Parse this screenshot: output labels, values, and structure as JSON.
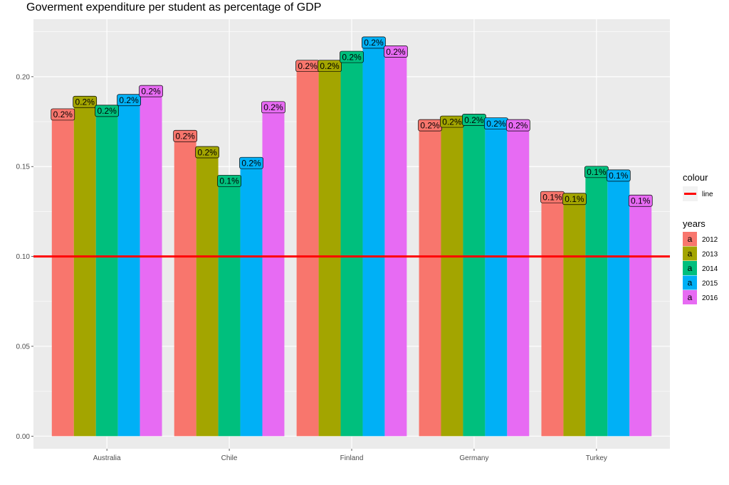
{
  "chart_data": {
    "type": "bar",
    "title": "Goverment expenditure per student as percentage of GDP",
    "xlabel": "",
    "ylabel": "",
    "categories": [
      "Australia",
      "Chile",
      "Finland",
      "Germany",
      "Turkey"
    ],
    "series": [
      {
        "name": "2012",
        "color": "#F8766D",
        "values": [
          0.179,
          0.167,
          0.206,
          0.173,
          0.133
        ],
        "labels": [
          "0.2%",
          "0.2%",
          "0.2%",
          "0.2%",
          "0.1%"
        ]
      },
      {
        "name": "2013",
        "color": "#A3A500",
        "values": [
          0.186,
          0.158,
          0.206,
          0.175,
          0.132
        ],
        "labels": [
          "0.2%",
          "0.2%",
          "0.2%",
          "0.2%",
          "0.1%"
        ]
      },
      {
        "name": "2014",
        "color": "#00BF7D",
        "values": [
          0.181,
          0.142,
          0.211,
          0.176,
          0.147
        ],
        "labels": [
          "0.2%",
          "0.1%",
          "0.2%",
          "0.2%",
          "0.1%"
        ]
      },
      {
        "name": "2015",
        "color": "#00B0F6",
        "values": [
          0.187,
          0.152,
          0.219,
          0.174,
          0.145
        ],
        "labels": [
          "0.2%",
          "0.2%",
          "0.2%",
          "0.2%",
          "0.1%"
        ]
      },
      {
        "name": "2016",
        "color": "#E76BF3",
        "values": [
          0.192,
          0.183,
          0.214,
          0.173,
          0.131
        ],
        "labels": [
          "0.2%",
          "0.2%",
          "0.2%",
          "0.2%",
          "0.1%"
        ]
      }
    ],
    "reference_line": {
      "value": 0.1,
      "color": "#FF0000",
      "legend_label": "line"
    },
    "ylim": [
      -0.007,
      0.232
    ],
    "yticks": [
      0.0,
      0.05,
      0.1,
      0.15,
      0.2
    ],
    "ytick_labels": [
      "0.00",
      "0.05",
      "0.10",
      "0.15",
      "0.20"
    ],
    "grid": true,
    "legend": {
      "placement": "right",
      "colour_title": "colour",
      "fill_title": "years",
      "key_glyph": "a"
    }
  }
}
